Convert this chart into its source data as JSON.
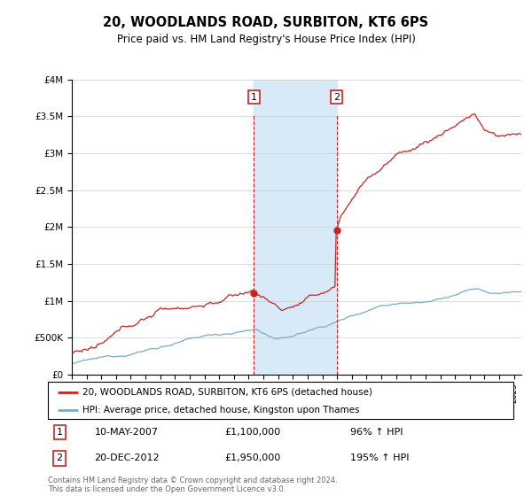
{
  "title": "20, WOODLANDS ROAD, SURBITON, KT6 6PS",
  "subtitle": "Price paid vs. HM Land Registry's House Price Index (HPI)",
  "legend_entry1": "20, WOODLANDS ROAD, SURBITON, KT6 6PS (detached house)",
  "legend_entry2": "HPI: Average price, detached house, Kingston upon Thames",
  "annotation1_date": "10-MAY-2007",
  "annotation1_price": "£1,100,000",
  "annotation1_hpi": "96% ↑ HPI",
  "annotation2_date": "20-DEC-2012",
  "annotation2_price": "£1,950,000",
  "annotation2_hpi": "195% ↑ HPI",
  "footer": "Contains HM Land Registry data © Crown copyright and database right 2024.\nThis data is licensed under the Open Government Licence v3.0.",
  "line_color_red": "#cc2222",
  "line_color_blue": "#7aaacc",
  "shade_color": "#d8eaf8",
  "annotation_box_color": "#cc2222",
  "ylim": [
    0,
    4000000
  ],
  "yticks": [
    0,
    500000,
    1000000,
    1500000,
    2000000,
    2500000,
    3000000,
    3500000,
    4000000
  ],
  "ytick_labels": [
    "£0",
    "£500K",
    "£1M",
    "£1.5M",
    "£2M",
    "£2.5M",
    "£3M",
    "£3.5M",
    "£4M"
  ],
  "sale1_x": 2007.36,
  "sale1_y": 1100000,
  "sale2_x": 2012.97,
  "sale2_y": 1950000,
  "xmin": 1995.0,
  "xmax": 2025.5
}
